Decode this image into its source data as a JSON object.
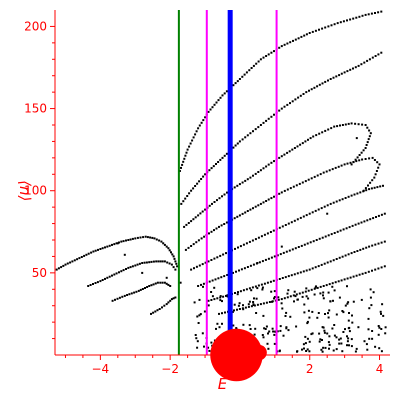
{
  "chart_data": {
    "type": "scatter",
    "title": "",
    "xlabel": "E",
    "ylabel": "⟨n⟩",
    "xlim": [
      -5.3,
      4.3
    ],
    "ylim": [
      0,
      210
    ],
    "x_ticks": [
      -4,
      -2,
      0,
      2,
      4
    ],
    "y_ticks": [
      50,
      100,
      150,
      200
    ],
    "grid": false,
    "colors": {
      "axes": "#ff0000",
      "points": "#000000",
      "line_green": "#008000",
      "line_magenta": "#ff00ff",
      "line_blue": "#0000ff",
      "blob": "#ff0000"
    },
    "vertical_lines": [
      {
        "x": -1.75,
        "color": "#008000",
        "width": 2
      },
      {
        "x": -0.95,
        "color": "#ff00ff",
        "width": 2
      },
      {
        "x": 1.05,
        "color": "#ff00ff",
        "width": 2
      },
      {
        "x": -0.28,
        "color": "#0000ff",
        "width": 5
      }
    ],
    "markers": [
      {
        "x": -0.1,
        "y": 0,
        "r": 0.75,
        "color": "#ff0000"
      },
      {
        "x": 0.55,
        "y": 1.5,
        "r": 0.22,
        "color": "#ff0000"
      }
    ],
    "curves": [
      {
        "points": [
          [
            -5.25,
            52
          ],
          [
            -5,
            55
          ],
          [
            -4.6,
            59
          ],
          [
            -4.2,
            63
          ],
          [
            -3.8,
            66
          ],
          [
            -3.4,
            69
          ],
          [
            -3.0,
            71
          ],
          [
            -2.7,
            72
          ],
          [
            -2.45,
            71
          ],
          [
            -2.25,
            69
          ],
          [
            -2.05,
            65
          ],
          [
            -1.9,
            60
          ],
          [
            -1.8,
            54
          ]
        ],
        "step": 0.07
      },
      {
        "points": [
          [
            -4.35,
            42
          ],
          [
            -4.0,
            45
          ],
          [
            -3.6,
            49
          ],
          [
            -3.2,
            53
          ],
          [
            -2.8,
            56
          ],
          [
            -2.4,
            57
          ],
          [
            -2.15,
            57
          ],
          [
            -1.95,
            55
          ],
          [
            -1.85,
            52
          ]
        ],
        "step": 0.07
      },
      {
        "points": [
          [
            -3.65,
            33
          ],
          [
            -3.3,
            36
          ],
          [
            -2.9,
            39
          ],
          [
            -2.6,
            42
          ],
          [
            -2.35,
            44
          ],
          [
            -2.15,
            44
          ],
          [
            -2.0,
            42
          ]
        ],
        "step": 0.07
      },
      {
        "points": [
          [
            -2.55,
            25
          ],
          [
            -2.3,
            28
          ],
          [
            -2.1,
            31
          ],
          [
            -1.95,
            34
          ],
          [
            -1.85,
            35
          ]
        ],
        "step": 0.07
      },
      {
        "points": [
          [
            -1.72,
            112
          ],
          [
            -1.5,
            125
          ],
          [
            -1.2,
            138
          ],
          [
            -0.9,
            148
          ],
          [
            -0.5,
            158
          ],
          [
            0,
            168
          ],
          [
            0.6,
            180
          ],
          [
            1.2,
            188
          ],
          [
            2.0,
            196
          ],
          [
            2.8,
            202
          ],
          [
            3.6,
            207
          ],
          [
            4.05,
            209
          ]
        ],
        "step": 0.09
      },
      {
        "points": [
          [
            -1.68,
            92
          ],
          [
            -1.4,
            100
          ],
          [
            -1.0,
            110
          ],
          [
            -0.5,
            120
          ],
          [
            0,
            130
          ],
          [
            0.6,
            140
          ],
          [
            1.2,
            150
          ],
          [
            1.9,
            160
          ],
          [
            2.6,
            168
          ],
          [
            3.4,
            176
          ],
          [
            4.05,
            184
          ]
        ],
        "step": 0.09
      },
      {
        "points": [
          [
            -1.6,
            78
          ],
          [
            -1.2,
            85
          ],
          [
            -0.8,
            92
          ],
          [
            -0.3,
            100
          ],
          [
            0.3,
            108
          ],
          [
            0.9,
            117
          ],
          [
            1.5,
            125
          ],
          [
            2.1,
            133
          ],
          [
            2.7,
            139
          ],
          [
            3.2,
            141
          ],
          [
            3.6,
            140
          ],
          [
            3.75,
            135
          ],
          [
            3.6,
            126
          ],
          [
            3.2,
            116
          ]
        ],
        "step": 0.09
      },
      {
        "points": [
          [
            -1.55,
            64
          ],
          [
            -1.1,
            71
          ],
          [
            -0.6,
            78
          ],
          [
            0,
            85
          ],
          [
            0.6,
            92
          ],
          [
            1.2,
            99
          ],
          [
            1.8,
            105
          ],
          [
            2.4,
            111
          ],
          [
            3.0,
            116
          ],
          [
            3.5,
            119
          ],
          [
            3.8,
            120
          ],
          [
            4.0,
            116
          ],
          [
            3.85,
            108
          ],
          [
            3.55,
            100
          ]
        ],
        "step": 0.09
      },
      {
        "points": [
          [
            -1.4,
            52
          ],
          [
            -0.9,
            57
          ],
          [
            -0.4,
            62
          ],
          [
            0.2,
            68
          ],
          [
            0.8,
            74
          ],
          [
            1.4,
            80
          ],
          [
            2.0,
            86
          ],
          [
            2.6,
            92
          ],
          [
            3.2,
            97
          ],
          [
            3.7,
            101
          ],
          [
            4.1,
            103
          ]
        ],
        "step": 0.09
      },
      {
        "points": [
          [
            -1.2,
            42
          ],
          [
            -0.7,
            46
          ],
          [
            -0.2,
            50
          ],
          [
            0.4,
            55
          ],
          [
            1.0,
            60
          ],
          [
            1.6,
            65
          ],
          [
            2.2,
            70
          ],
          [
            2.8,
            75
          ],
          [
            3.4,
            80
          ],
          [
            3.9,
            84
          ],
          [
            4.15,
            86
          ]
        ],
        "step": 0.09
      },
      {
        "points": [
          [
            -0.9,
            33
          ],
          [
            -0.4,
            36
          ],
          [
            0.2,
            40
          ],
          [
            0.8,
            44
          ],
          [
            1.4,
            48
          ],
          [
            2.0,
            52
          ],
          [
            2.6,
            57
          ],
          [
            3.2,
            62
          ],
          [
            3.7,
            66
          ],
          [
            4.15,
            69
          ]
        ],
        "step": 0.09
      },
      {
        "points": [
          [
            -0.6,
            25
          ],
          [
            0,
            28
          ],
          [
            0.6,
            31
          ],
          [
            1.2,
            34
          ],
          [
            1.8,
            38
          ],
          [
            2.4,
            42
          ],
          [
            3.0,
            46
          ],
          [
            3.6,
            50
          ],
          [
            4.15,
            54
          ]
        ],
        "step": 0.09
      }
    ],
    "cloud": {
      "x_range": [
        -1.3,
        4.2
      ],
      "y_range": [
        2,
        42
      ],
      "count": 260
    },
    "extra_points": [
      [
        -3.5,
        68
      ],
      [
        -3.3,
        61
      ],
      [
        -2.8,
        50
      ],
      [
        -2.1,
        47
      ],
      [
        -1.7,
        44
      ],
      [
        -1.3,
        32
      ],
      [
        0.5,
        56
      ],
      [
        1.2,
        66
      ],
      [
        2.5,
        86
      ],
      [
        3.35,
        132
      ]
    ]
  }
}
